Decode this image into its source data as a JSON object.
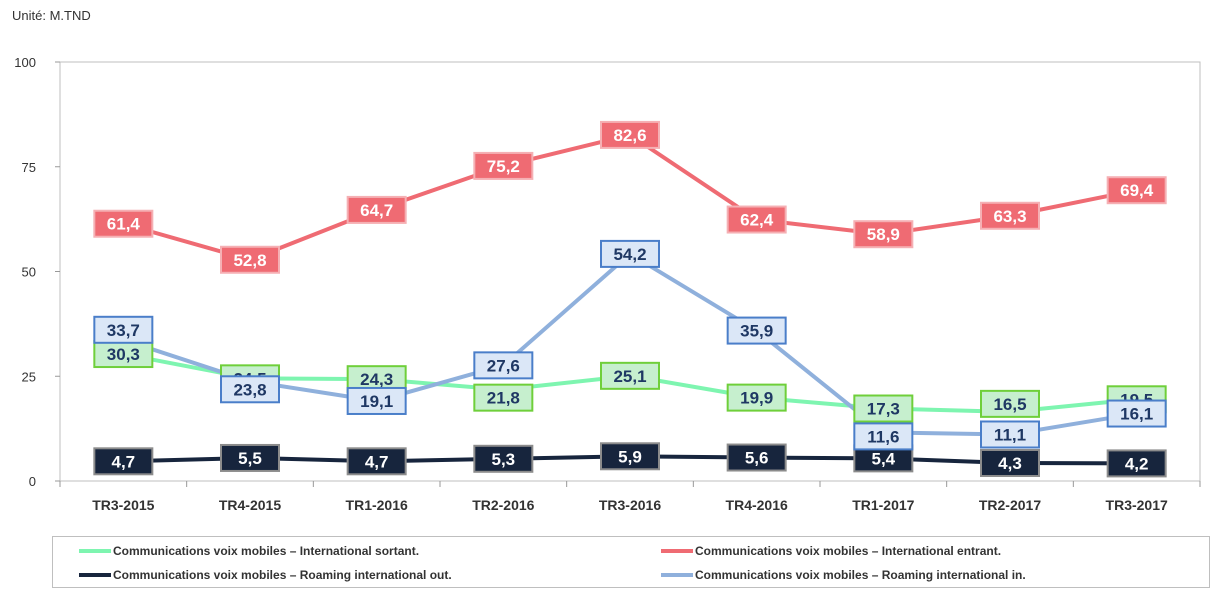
{
  "unit_label": "Unité: M.TND",
  "chart_data": {
    "type": "line",
    "title": "",
    "xlabel": "",
    "ylabel": "",
    "ylim": [
      0,
      100
    ],
    "yticks": [
      0,
      25,
      50,
      75,
      100
    ],
    "grid": false,
    "legend_position": "bottom",
    "categories": [
      "TR3-2015",
      "TR4-2015",
      "TR1-2016",
      "TR2-2016",
      "TR3-2016",
      "TR4-2016",
      "TR1-2017",
      "TR2-2017",
      "TR3-2017"
    ],
    "series": [
      {
        "name": "Communications voix mobiles – International sortant.",
        "color": "#7ef5b0",
        "label_bg": "#c6efce",
        "label_border": "#6fcf3a",
        "label_text": "#1f3864",
        "values": [
          30.3,
          24.5,
          24.3,
          21.8,
          25.1,
          19.9,
          17.3,
          16.5,
          19.5
        ],
        "labels": [
          "30,3",
          "24,5",
          "24,3",
          "21,8",
          "25,1",
          "19,9",
          "17,3",
          "16,5",
          "19,5"
        ]
      },
      {
        "name": "Communications voix mobiles – International entrant.",
        "color": "#ef6b73",
        "label_bg": "#ef6b73",
        "label_border": "#f5b0b4",
        "label_text": "#ffffff",
        "values": [
          61.4,
          52.8,
          64.7,
          75.2,
          82.6,
          62.4,
          58.9,
          63.3,
          69.4
        ],
        "labels": [
          "61,4",
          "52,8",
          "64,7",
          "75,2",
          "82,6",
          "62,4",
          "58,9",
          "63,3",
          "69,4"
        ]
      },
      {
        "name": "Communications voix mobiles – Roaming international out.",
        "color": "#17253d",
        "label_bg": "#17253d",
        "label_border": "#8c8c8c",
        "label_text": "#ffffff",
        "values": [
          4.7,
          5.5,
          4.7,
          5.3,
          5.9,
          5.6,
          5.4,
          4.3,
          4.2
        ],
        "labels": [
          "4,7",
          "5,5",
          "4,7",
          "5,3",
          "5,9",
          "5,6",
          "5,4",
          "4,3",
          "4,2"
        ]
      },
      {
        "name": "Communications voix mobiles  – Roaming international in.",
        "color": "#8fb0dc",
        "label_bg": "#dbe7f7",
        "label_border": "#4a7ec9",
        "label_text": "#1f3864",
        "values": [
          33.7,
          23.8,
          19.1,
          27.6,
          54.2,
          35.9,
          11.6,
          11.1,
          16.1
        ],
        "labels": [
          "33,7",
          "23,8",
          "19,1",
          "27,6",
          "54,2",
          "35,9",
          "11,6",
          "11,1",
          "16,1"
        ]
      }
    ]
  }
}
